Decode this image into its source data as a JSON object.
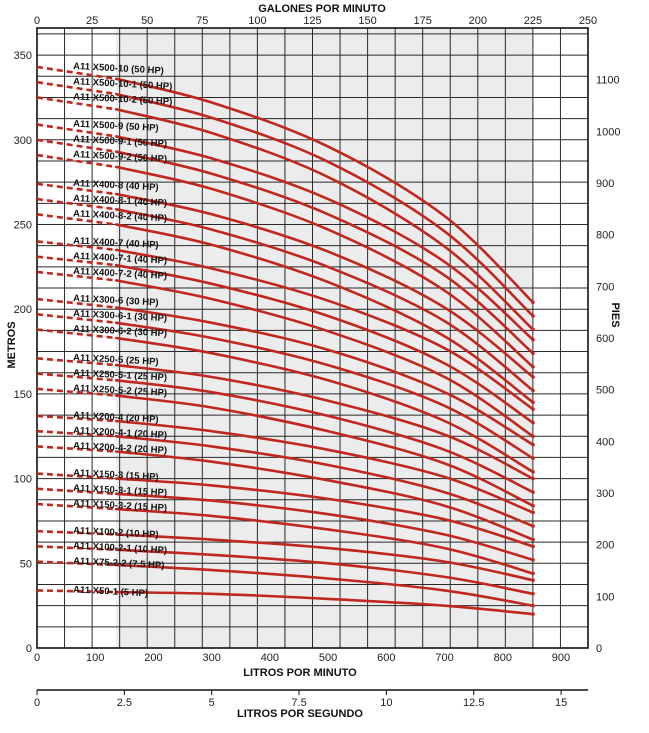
{
  "chart_data": {
    "type": "line",
    "title": "",
    "top_axis": {
      "label": "GALONES POR MINUTO",
      "range": [
        0,
        250
      ],
      "ticks": [
        0,
        25,
        50,
        75,
        100,
        125,
        150,
        175,
        200,
        225,
        250
      ]
    },
    "bottom_axis": {
      "label": "LITROS POR MINUTO",
      "range": [
        0,
        946.4
      ],
      "ticks": [
        0,
        100,
        200,
        300,
        400,
        500,
        600,
        700,
        800,
        900
      ]
    },
    "second_bottom_axis": {
      "label": "LITROS POR SEGUNDO",
      "range": [
        0,
        15.77
      ],
      "ticks": [
        "0",
        "2.5",
        "5",
        "7.5",
        "10",
        "12.5",
        "15"
      ],
      "tick_values": [
        0,
        2.5,
        5,
        7.5,
        10,
        12.5,
        15
      ]
    },
    "left_axis": {
      "label": "METROS",
      "range": [
        0,
        366
      ],
      "ticks": [
        0,
        50,
        100,
        150,
        200,
        250,
        300,
        350
      ]
    },
    "right_axis": {
      "label": "PIES",
      "range": [
        0,
        1200
      ],
      "ticks": [
        0,
        100,
        200,
        300,
        400,
        500,
        600,
        700,
        800,
        900,
        1000,
        1100
      ]
    },
    "shaded_range_lpm": [
      136,
      852
    ],
    "grid": true,
    "x_unit": "litros por minuto",
    "y_unit": "metros",
    "series": [
      {
        "name": "A11 X500-10 (50 HP)",
        "x": [
          0,
          136,
          300,
          500,
          700,
          852
        ],
        "y": [
          343,
          336,
          322,
          296,
          255,
          204
        ]
      },
      {
        "name": "A11 X500-10-1 (50 HP)",
        "x": [
          0,
          136,
          300,
          500,
          700,
          852
        ],
        "y": [
          334,
          327,
          313,
          287,
          246,
          196
        ]
      },
      {
        "name": "A11 X500-10-2 (50 HP)",
        "x": [
          0,
          136,
          300,
          500,
          700,
          852
        ],
        "y": [
          325,
          318,
          304,
          278,
          237,
          188
        ]
      },
      {
        "name": "A11 X500-9 (50 HP)",
        "x": [
          0,
          136,
          300,
          500,
          700,
          852
        ],
        "y": [
          309,
          302,
          289,
          265,
          228,
          182
        ]
      },
      {
        "name": "A11 X500-9-1 (50 HP)",
        "x": [
          0,
          136,
          300,
          500,
          700,
          852
        ],
        "y": [
          300,
          293,
          280,
          256,
          220,
          174
        ]
      },
      {
        "name": "A11 X500-9-2 (50 HP)",
        "x": [
          0,
          136,
          300,
          500,
          700,
          852
        ],
        "y": [
          291,
          284,
          271,
          247,
          211,
          166
        ]
      },
      {
        "name": "A11 X400-8 (40 HP)",
        "x": [
          0,
          136,
          300,
          500,
          700,
          852
        ],
        "y": [
          274,
          268,
          256,
          234,
          201,
          160
        ]
      },
      {
        "name": "A11 X400-8-1 (40 HP)",
        "x": [
          0,
          136,
          300,
          500,
          700,
          852
        ],
        "y": [
          265,
          259,
          247,
          225,
          193,
          152
        ]
      },
      {
        "name": "A11 X400-8-2 (40 HP)",
        "x": [
          0,
          136,
          300,
          500,
          700,
          852
        ],
        "y": [
          256,
          250,
          238,
          216,
          184,
          145
        ]
      },
      {
        "name": "A11 X400-7 (40 HP)",
        "x": [
          0,
          136,
          300,
          500,
          700,
          852
        ],
        "y": [
          240,
          235,
          224,
          205,
          177,
          141
        ]
      },
      {
        "name": "A11 X400-7-1 (40 HP)",
        "x": [
          0,
          136,
          300,
          500,
          700,
          852
        ],
        "y": [
          231,
          226,
          215,
          196,
          168,
          133
        ]
      },
      {
        "name": "A11 X400-7-2 (40 HP)",
        "x": [
          0,
          136,
          300,
          500,
          700,
          852
        ],
        "y": [
          222,
          217,
          206,
          187,
          160,
          125
        ]
      },
      {
        "name": "A11 X300-6 (30 HP)",
        "x": [
          0,
          136,
          300,
          500,
          700,
          852
        ],
        "y": [
          206,
          201,
          192,
          176,
          151,
          120
        ]
      },
      {
        "name": "A11 X300-6-1 (30 HP)",
        "x": [
          0,
          136,
          300,
          500,
          700,
          852
        ],
        "y": [
          197,
          192,
          183,
          167,
          143,
          112
        ]
      },
      {
        "name": "A11 X300-6-2 (30 HP)",
        "x": [
          0,
          136,
          300,
          500,
          700,
          852
        ],
        "y": [
          188,
          183,
          174,
          158,
          134,
          104
        ]
      },
      {
        "name": "A11 X250-5 (25 HP)",
        "x": [
          0,
          136,
          300,
          500,
          700,
          852
        ],
        "y": [
          171,
          167,
          160,
          146,
          126,
          100
        ]
      },
      {
        "name": "A11 X250-5-1 (25 HP)",
        "x": [
          0,
          136,
          300,
          500,
          700,
          852
        ],
        "y": [
          162,
          158,
          151,
          137,
          117,
          92
        ]
      },
      {
        "name": "A11 X250-5-2 (25 HP)",
        "x": [
          0,
          136,
          300,
          500,
          700,
          852
        ],
        "y": [
          153,
          149,
          142,
          128,
          109,
          84
        ]
      },
      {
        "name": "A11 X200-4 (20 HP)",
        "x": [
          0,
          136,
          300,
          500,
          700,
          852
        ],
        "y": [
          137,
          134,
          128,
          117,
          101,
          80
        ]
      },
      {
        "name": "A11 X200-4-1 (20 HP)",
        "x": [
          0,
          136,
          300,
          500,
          700,
          852
        ],
        "y": [
          128,
          125,
          119,
          108,
          92,
          72
        ]
      },
      {
        "name": "A11 X200-4-2 (20 HP)",
        "x": [
          0,
          136,
          300,
          500,
          700,
          852
        ],
        "y": [
          119,
          116,
          110,
          99,
          84,
          64
        ]
      },
      {
        "name": "A11 X150-3 (15 HP)",
        "x": [
          0,
          136,
          300,
          500,
          700,
          852
        ],
        "y": [
          103,
          100,
          96,
          88,
          76,
          60
        ]
      },
      {
        "name": "A11 X150-3-1 (15 HP)",
        "x": [
          0,
          136,
          300,
          500,
          700,
          852
        ],
        "y": [
          94,
          91,
          87,
          79,
          67,
          52
        ]
      },
      {
        "name": "A11 X150-3-2 (15 HP)",
        "x": [
          0,
          136,
          300,
          500,
          700,
          852
        ],
        "y": [
          85,
          82,
          78,
          70,
          59,
          44
        ]
      },
      {
        "name": "A11 X100-2 (10 HP)",
        "x": [
          0,
          136,
          300,
          500,
          700,
          852
        ],
        "y": [
          69,
          67,
          64,
          59,
          51,
          40
        ]
      },
      {
        "name": "A11 X100-2-1 (10 HP)",
        "x": [
          0,
          136,
          300,
          500,
          700,
          852
        ],
        "y": [
          60,
          58,
          55,
          50,
          42,
          32
        ]
      },
      {
        "name": "A11 X75-2-2 (7.5 HP)",
        "x": [
          0,
          136,
          300,
          500,
          700,
          852
        ],
        "y": [
          51,
          49,
          46,
          41,
          34,
          25
        ]
      },
      {
        "name": "A11 X50-1 (5 HP)",
        "x": [
          0,
          136,
          300,
          500,
          700,
          852
        ],
        "y": [
          34,
          33,
          32,
          29,
          25,
          20
        ]
      }
    ]
  },
  "colors": {
    "curve": "#c0281f",
    "shade": "#ececec",
    "grid": "#2a2a2a"
  }
}
